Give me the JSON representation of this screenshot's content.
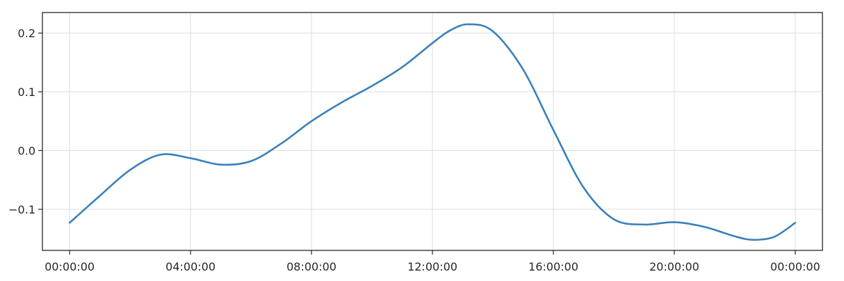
{
  "chart_data": {
    "type": "line",
    "title": "",
    "xlabel": "",
    "ylabel": "",
    "grid": true,
    "x_unit": "hours",
    "xlim": [
      -0.9,
      24.9
    ],
    "ylim": [
      -0.17,
      0.235
    ],
    "x_ticks": [
      {
        "value": 0,
        "label": "00:00:00"
      },
      {
        "value": 4,
        "label": "04:00:00"
      },
      {
        "value": 8,
        "label": "08:00:00"
      },
      {
        "value": 12,
        "label": "12:00:00"
      },
      {
        "value": 16,
        "label": "16:00:00"
      },
      {
        "value": 20,
        "label": "20:00:00"
      },
      {
        "value": 24,
        "label": "00:00:00"
      }
    ],
    "y_ticks": [
      {
        "value": -0.1,
        "label": "−0.1"
      },
      {
        "value": 0.0,
        "label": "0.0"
      },
      {
        "value": 0.1,
        "label": "0.1"
      },
      {
        "value": 0.2,
        "label": "0.2"
      }
    ],
    "series": [
      {
        "color": "#3a80ba",
        "x": [
          0,
          1,
          2,
          3,
          4,
          5,
          6,
          7,
          8,
          9,
          10,
          11,
          12,
          12.6,
          13.2,
          14,
          15,
          16,
          17,
          18,
          19,
          20,
          21,
          22,
          22.6,
          23.3,
          24
        ],
        "y": [
          -0.123,
          -0.077,
          -0.033,
          -0.007,
          -0.013,
          -0.024,
          -0.018,
          0.012,
          0.05,
          0.082,
          0.11,
          0.142,
          0.183,
          0.205,
          0.215,
          0.203,
          0.138,
          0.035,
          -0.063,
          -0.117,
          -0.126,
          -0.122,
          -0.13,
          -0.146,
          -0.152,
          -0.147,
          -0.123
        ]
      }
    ]
  }
}
